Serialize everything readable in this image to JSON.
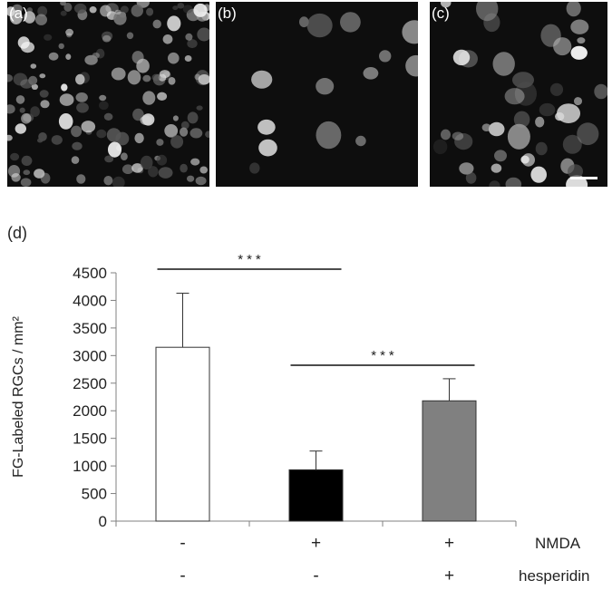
{
  "panels": [
    {
      "label": "(a)"
    },
    {
      "label": "(b)"
    },
    {
      "label": "(c)"
    }
  ],
  "panel_d_label": "(d)",
  "chart_data": {
    "type": "bar",
    "categories": [
      "NMDA - / hesperidin -",
      "NMDA + / hesperidin -",
      "NMDA + / hesperidin +"
    ],
    "values": [
      3150,
      930,
      2180
    ],
    "error_bars": [
      980,
      340,
      400
    ],
    "bar_colors": [
      "#ffffff",
      "#000000",
      "#808080"
    ],
    "ylabel": "FG-Labeled RGCs / mm²",
    "ylim": [
      0,
      4500
    ],
    "yticks": [
      "0",
      "500",
      "1000",
      "1500",
      "2000",
      "2500",
      "3000",
      "3500",
      "4000",
      "4500"
    ],
    "grid": false,
    "significance": [
      {
        "from": 0,
        "to": 1,
        "label": "***"
      },
      {
        "from": 1,
        "to": 2,
        "label": "***"
      }
    ],
    "treatment_rows": [
      {
        "name": "NMDA",
        "marks": [
          "-",
          "+",
          "+"
        ]
      },
      {
        "name": "hesperidin",
        "marks": [
          "-",
          "-",
          "+"
        ]
      }
    ]
  }
}
